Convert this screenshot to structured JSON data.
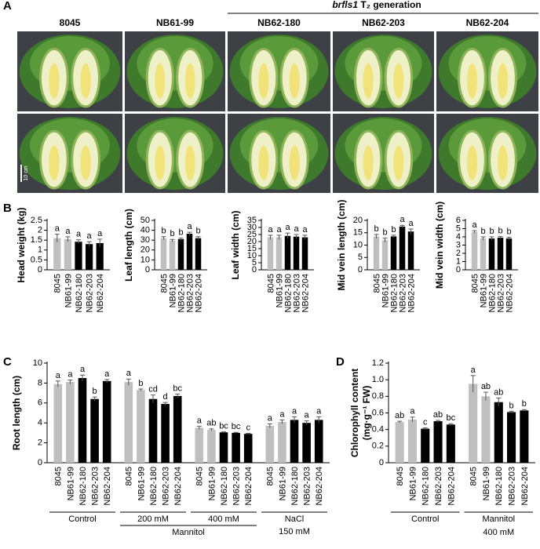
{
  "panels": {
    "a": "A",
    "b": "B",
    "c": "C",
    "d": "D"
  },
  "photos": {
    "columns": [
      "8045",
      "NB61-99",
      "NB62-180",
      "NB62-203",
      "NB62-204"
    ],
    "gene": "brfls1",
    "generation": "T₂ generation",
    "scale": "10 cm"
  },
  "chart_data": [
    {
      "type": "bar",
      "y_label": "Head weight (kg)",
      "ylim": [
        0,
        2.5
      ],
      "yticks": [
        0,
        0.5,
        1,
        1.5,
        2,
        2.5
      ],
      "colors": [
        "#bfbfbf",
        "#bfbfbf",
        "#000000",
        "#000000",
        "#000000"
      ],
      "groups": [
        {
          "categories": [
            "8045",
            "NB61-99",
            "NB62-180",
            "NB62-203",
            "NB62-204"
          ],
          "values": [
            1.6,
            1.55,
            1.42,
            1.3,
            1.35
          ],
          "errors": [
            0.2,
            0.12,
            0.1,
            0.12,
            0.2
          ],
          "letters": [
            "a",
            "a",
            "a",
            "a",
            "a"
          ]
        }
      ]
    },
    {
      "type": "bar",
      "y_label": "Leaf length (cm)",
      "ylim": [
        0,
        50
      ],
      "yticks": [
        0,
        10,
        20,
        30,
        40,
        50
      ],
      "colors": [
        "#bfbfbf",
        "#bfbfbf",
        "#000000",
        "#000000",
        "#000000"
      ],
      "groups": [
        {
          "categories": [
            "8045",
            "NB61-99",
            "NB62-180",
            "NB62-203",
            "NB62-204"
          ],
          "values": [
            32,
            29.5,
            31,
            36.5,
            32
          ],
          "errors": [
            1.5,
            1.2,
            1,
            1.5,
            1.5
          ],
          "letters": [
            "b",
            "b",
            "b",
            "a",
            "b"
          ]
        }
      ]
    },
    {
      "type": "bar",
      "y_label": "Leaf width (cm)",
      "ylim": [
        0,
        35
      ],
      "yticks": [
        0,
        5,
        10,
        15,
        20,
        25,
        30,
        35
      ],
      "colors": [
        "#bfbfbf",
        "#bfbfbf",
        "#000000",
        "#000000",
        "#000000"
      ],
      "groups": [
        {
          "categories": [
            "8045",
            "NB61-99",
            "NB62-180",
            "NB62-203",
            "NB62-204"
          ],
          "values": [
            23,
            23,
            24,
            23.5,
            23
          ],
          "errors": [
            1.5,
            1.5,
            2,
            1.5,
            1.5
          ],
          "letters": [
            "a",
            "a",
            "a",
            "a",
            "a"
          ]
        }
      ]
    },
    {
      "type": "bar",
      "y_label": "Mid vein length (cm)",
      "ylim": [
        0,
        20
      ],
      "yticks": [
        0,
        5,
        10,
        15,
        20
      ],
      "colors": [
        "#bfbfbf",
        "#bfbfbf",
        "#000000",
        "#000000",
        "#000000"
      ],
      "groups": [
        {
          "categories": [
            "8045",
            "NB61-99",
            "NB62-180",
            "NB62-203",
            "NB62-204"
          ],
          "values": [
            13.5,
            12,
            13.5,
            17.5,
            15.5
          ],
          "errors": [
            0.8,
            0.8,
            0.5,
            0.5,
            1
          ],
          "letters": [
            "b",
            "b",
            "b",
            "a",
            "a"
          ]
        }
      ]
    },
    {
      "type": "bar",
      "y_label": "Mid vein width (cm)",
      "ylim": [
        0,
        6
      ],
      "yticks": [
        0,
        1,
        2,
        3,
        4,
        5,
        6
      ],
      "colors": [
        "#bfbfbf",
        "#bfbfbf",
        "#000000",
        "#000000",
        "#000000"
      ],
      "groups": [
        {
          "categories": [
            "8045",
            "NB61-99",
            "NB62-180",
            "NB62-203",
            "NB62-204"
          ],
          "values": [
            4.6,
            3.8,
            3.8,
            3.9,
            3.8
          ],
          "errors": [
            0.15,
            0.2,
            0.2,
            0.15,
            0.15
          ],
          "letters": [
            "a",
            "b",
            "b",
            "b",
            "b"
          ]
        }
      ]
    },
    {
      "type": "bar",
      "y_label": "Root length (cm)",
      "ylim": [
        0,
        10
      ],
      "yticks": [
        0,
        2,
        4,
        6,
        8,
        10
      ],
      "colors": [
        "#bfbfbf",
        "#bfbfbf",
        "#000000",
        "#000000",
        "#000000"
      ],
      "span_label": "Mannitol",
      "groups": [
        {
          "label": [
            "Control"
          ],
          "categories": [
            "8045",
            "NB61-99",
            "NB62-180",
            "NB62-203",
            "NB62-204"
          ],
          "values": [
            7.9,
            8.1,
            8.5,
            6.4,
            8.2
          ],
          "errors": [
            0.3,
            0.2,
            0.3,
            0.2,
            0.15
          ],
          "letters": [
            "a",
            "a",
            "a",
            "b",
            "a"
          ]
        },
        {
          "label": [
            "200 mM"
          ],
          "categories": [
            "8045",
            "NB61-99",
            "NB62-180",
            "NB62-203",
            "NB62-204"
          ],
          "values": [
            8.1,
            7.3,
            6.4,
            5.9,
            6.7
          ],
          "errors": [
            0.3,
            0.1,
            0.4,
            0.15,
            0.2
          ],
          "letters": [
            "a",
            "b",
            "cd",
            "d",
            "bc"
          ]
        },
        {
          "label": [
            "400 mM"
          ],
          "categories": [
            "8045",
            "NB61-99",
            "NB62-180",
            "NB62-203",
            "NB62-204"
          ],
          "values": [
            3.5,
            3.3,
            3.05,
            3.0,
            2.9
          ],
          "errors": [
            0.15,
            0.1,
            0.05,
            0.05,
            0.05
          ],
          "letters": [
            "a",
            "ab",
            "bc",
            "bc",
            "c"
          ]
        },
        {
          "label": [
            "NaCl",
            "150 mM"
          ],
          "categories": [
            "8045",
            "NB61-99",
            "NB62-180",
            "NB62-203",
            "NB62-204"
          ],
          "values": [
            3.7,
            4.1,
            4.3,
            4.0,
            4.3
          ],
          "errors": [
            0.2,
            0.2,
            0.3,
            0.2,
            0.3
          ],
          "letters": [
            "a",
            "a",
            "a",
            "a",
            "a"
          ]
        }
      ]
    },
    {
      "type": "bar",
      "y_label": [
        "Chlorophyll content",
        "(mg·g⁻¹ FW)"
      ],
      "ylim": [
        0,
        1.2
      ],
      "yticks": [
        0,
        0.2,
        0.4,
        0.6,
        0.8,
        {
          "value": 1,
          "label": "1.0"
        },
        1.2
      ],
      "colors": [
        "#bfbfbf",
        "#bfbfbf",
        "#000000",
        "#000000",
        "#000000"
      ],
      "groups": [
        {
          "label": [
            "Control"
          ],
          "categories": [
            "8045",
            "NB61-99",
            "NB62-180",
            "NB62-203",
            "NB62-204"
          ],
          "values": [
            0.49,
            0.52,
            0.41,
            0.5,
            0.46
          ],
          "errors": [
            0.01,
            0.03,
            0.01,
            0.01,
            0.01
          ],
          "letters": [
            "ab",
            "a",
            "c",
            "ab",
            "bc"
          ]
        },
        {
          "label": [
            "Mannitol",
            "400 mM"
          ],
          "categories": [
            "8045",
            "NB61-99",
            "NB62-180",
            "NB62-203",
            "NB62-204"
          ],
          "values": [
            0.95,
            0.8,
            0.73,
            0.61,
            0.63
          ],
          "errors": [
            0.1,
            0.05,
            0.05,
            0.01,
            0.01
          ],
          "letters": [
            "a",
            "ab",
            "ab",
            "b",
            "b"
          ]
        }
      ]
    }
  ]
}
